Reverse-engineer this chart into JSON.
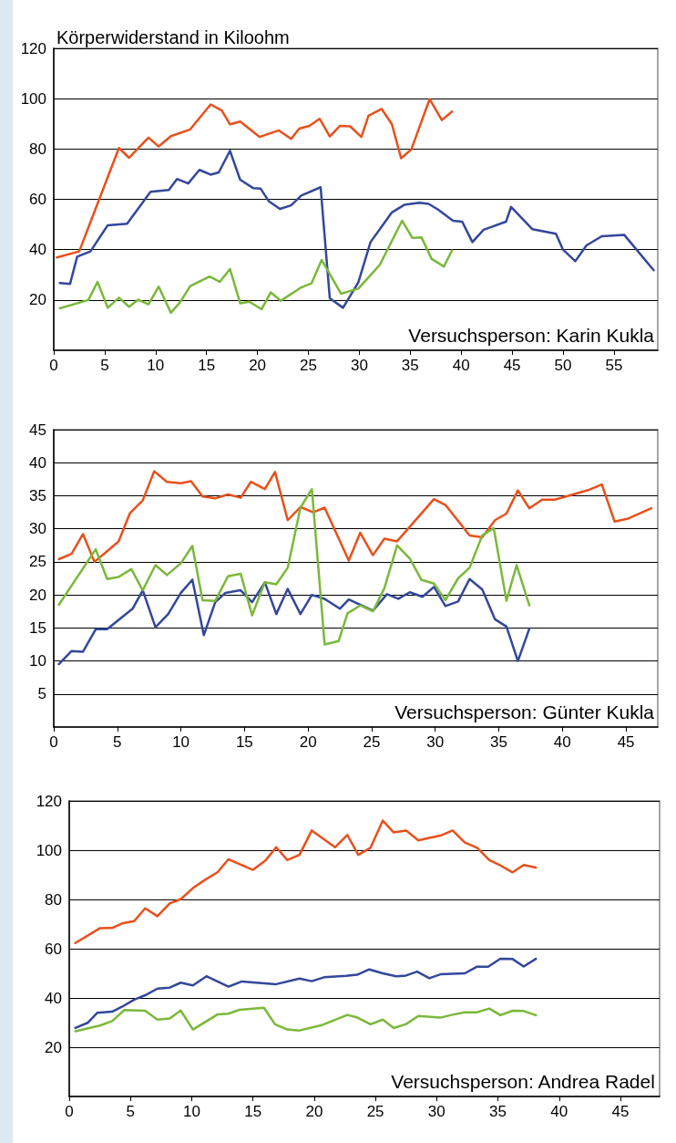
{
  "chart_data": [
    {
      "type": "line",
      "title": "Körperwiderstand in Kiloohm",
      "annotations": [
        "Versuchsperson: Karin Kukla"
      ],
      "xlim": [
        0,
        59.3
      ],
      "xticks": [
        0,
        5,
        10,
        15,
        20,
        25,
        30,
        35,
        40,
        45,
        50,
        55
      ],
      "ylim": [
        0,
        120
      ],
      "yticks": [
        20,
        40,
        60,
        80,
        100,
        120
      ],
      "grid": "y",
      "marker": "none",
      "line_style": "solid",
      "series": [
        {
          "color": "#e8501c",
          "x": [
            0.3,
            2.5,
            6.4,
            7.4,
            9.3,
            10.3,
            11.5,
            13.4,
            15.4,
            16.5,
            17.3,
            18.3,
            20.2,
            22.1,
            23.3,
            24.1,
            25.1,
            26.1,
            27.1,
            28.1,
            29.1,
            30.2,
            30.9,
            32.2,
            33.2,
            34.1,
            35.1,
            36.9,
            38.1,
            39.1
          ],
          "values": [
            36.9,
            39.3,
            80.4,
            76.5,
            84.5,
            81,
            85.1,
            87.8,
            97.7,
            95.3,
            89.8,
            90.9,
            84.8,
            87.4,
            84,
            88.1,
            89.2,
            92,
            85,
            89.2,
            89,
            84.8,
            93.2,
            95.9,
            89.8,
            76.3,
            79.8,
            99.8,
            91.5,
            94.9
          ]
        },
        {
          "color": "#33479b",
          "x": [
            0.6,
            1.6,
            2.3,
            3.6,
            5.3,
            7.2,
            9.5,
            11.3,
            12.1,
            13.2,
            14.3,
            15.4,
            16.2,
            17.3,
            18.3,
            19.6,
            20.3,
            21.1,
            22.2,
            23.3,
            24.3,
            26.2,
            27.1,
            28.4,
            29.9,
            31.1,
            33.2,
            34.4,
            35.9,
            36.8,
            37.7,
            39.2,
            40.1,
            41.1,
            42.2,
            44.4,
            44.9,
            47.0,
            49.3,
            50.0,
            51.2,
            52.3,
            53.8,
            56.0,
            58.9
          ],
          "values": [
            26.7,
            26.4,
            37.2,
            39.3,
            49.7,
            50.3,
            63,
            63.7,
            68.1,
            66.3,
            71.7,
            69.8,
            70.7,
            79.3,
            67.8,
            64.4,
            64.3,
            59.3,
            56.2,
            57.6,
            61.5,
            64.8,
            20.7,
            16.9,
            27,
            43,
            54.8,
            57.8,
            58.6,
            58.2,
            56,
            51.5,
            51.1,
            43,
            47.9,
            51.1,
            57,
            48.1,
            46.3,
            40,
            35.4,
            41.7,
            45.3,
            45.9,
            31.8
          ]
        },
        {
          "color": "#7ab83a",
          "x": [
            0.6,
            3.4,
            4.3,
            5.3,
            6.4,
            7.4,
            8.3,
            9.3,
            10.3,
            11.5,
            12.4,
            13.4,
            15.3,
            16.3,
            17.3,
            18.3,
            19.2,
            20.4,
            21.3,
            22.3,
            24.3,
            25.3,
            26.3,
            28.2,
            29.9,
            31.0,
            32.0,
            34.2,
            35.2,
            36.1,
            37.1,
            38.3,
            39.1
          ],
          "values": [
            16.7,
            20,
            27.2,
            16.9,
            20.9,
            17.3,
            20.1,
            18.3,
            25.3,
            14.9,
            19.1,
            25.5,
            29.3,
            27.2,
            32.3,
            18.7,
            19.3,
            16.3,
            23,
            19.7,
            25,
            26.6,
            35.9,
            22.5,
            24.5,
            29.4,
            33.9,
            51.5,
            44.7,
            44.9,
            36.3,
            33.3,
            39.7
          ]
        }
      ]
    },
    {
      "type": "line",
      "annotations": [
        "Versuchsperson: Günter Kukla"
      ],
      "xlim": [
        0,
        47.5
      ],
      "xticks": [
        0,
        5,
        10,
        15,
        20,
        25,
        30,
        35,
        40,
        45
      ],
      "ylim": [
        0,
        45
      ],
      "yticks": [
        5,
        10,
        15,
        20,
        25,
        30,
        35,
        40,
        45
      ],
      "grid": "y",
      "marker": "none",
      "line_style": "solid",
      "series": [
        {
          "color": "#e8501c",
          "x": [
            0.4,
            1.4,
            2.3,
            3.2,
            4.2,
            5.1,
            6.0,
            7.0,
            7.9,
            8.9,
            10.0,
            10.8,
            11.7,
            12.7,
            13.7,
            14.7,
            15.5,
            16.6,
            17.4,
            18.4,
            19.4,
            20.4,
            21.3,
            23.2,
            24.1,
            25.1,
            26.0,
            27.0,
            29.9,
            30.8,
            32.7,
            33.7,
            34.7,
            35.6,
            36.5,
            37.4,
            38.4,
            39.4,
            42.1,
            43.1,
            44.1,
            45.1,
            47.0
          ],
          "values": [
            25.4,
            26.2,
            29.2,
            25,
            26.6,
            28.1,
            32.4,
            34.3,
            38.7,
            37.1,
            36.9,
            37.2,
            34.9,
            34.6,
            35.2,
            34.7,
            37.1,
            36,
            38.6,
            31.3,
            33.3,
            32.5,
            33.2,
            25.2,
            29.4,
            26,
            28.5,
            28.1,
            34.5,
            33.6,
            29,
            28.7,
            31.3,
            32.3,
            35.8,
            33.1,
            34.4,
            34.4,
            35.9,
            36.7,
            31.1,
            31.5,
            33.1
          ]
        },
        {
          "color": "#33479b",
          "x": [
            0.4,
            1.4,
            2.3,
            3.3,
            4.2,
            6.2,
            7.0,
            8.0,
            9.0,
            10.0,
            10.9,
            11.8,
            12.7,
            13.5,
            14.7,
            15.6,
            16.6,
            17.5,
            18.4,
            19.4,
            20.3,
            21.3,
            22.5,
            23.2,
            25.1,
            26.2,
            27.1,
            28.0,
            29.0,
            29.9,
            30.8,
            31.8,
            32.7,
            33.7,
            34.7,
            35.6,
            36.5,
            37.4
          ],
          "values": [
            9.5,
            11.5,
            11.4,
            14.8,
            14.8,
            17.9,
            20.7,
            15.1,
            17.1,
            20.3,
            22.3,
            13.9,
            18.9,
            20.3,
            20.7,
            18.9,
            21.9,
            17.1,
            20.9,
            17.1,
            20,
            19.4,
            17.9,
            19.3,
            17.6,
            20.1,
            19.4,
            20.4,
            19.7,
            21.2,
            18.3,
            19,
            22.4,
            20.8,
            16.3,
            15.2,
            10,
            14.9
          ]
        },
        {
          "color": "#7ab83a",
          "x": [
            0.4,
            3.3,
            4.2,
            5.1,
            6.1,
            7.0,
            8.0,
            8.9,
            10.0,
            10.9,
            11.7,
            12.7,
            13.7,
            14.7,
            15.6,
            16.6,
            17.5,
            18.4,
            19.4,
            20.3,
            21.3,
            22.4,
            23.1,
            24.1,
            25.1,
            26.0,
            27.0,
            28.0,
            28.9,
            29.9,
            30.8,
            31.8,
            32.7,
            33.7,
            34.6,
            35.6,
            36.4,
            37.4
          ],
          "values": [
            18.5,
            26.9,
            22.4,
            22.7,
            23.9,
            20.7,
            24.5,
            23,
            24.8,
            27.4,
            19.2,
            19.1,
            22.8,
            23.2,
            16.9,
            21.9,
            21.6,
            24.1,
            33.2,
            36,
            12.5,
            13,
            17.2,
            18.4,
            17.5,
            21,
            27.5,
            25.5,
            22.3,
            21.7,
            19.2,
            22.5,
            24.1,
            29,
            30.1,
            19.1,
            24.5,
            18.4
          ]
        }
      ]
    },
    {
      "type": "line",
      "annotations": [
        "Versuchsperson: Andrea Radel"
      ],
      "xlim": [
        0,
        48.2
      ],
      "xticks": [
        0,
        5,
        10,
        15,
        20,
        25,
        30,
        35,
        40,
        45
      ],
      "ylim": [
        0,
        120
      ],
      "yticks": [
        20,
        40,
        60,
        80,
        100,
        120
      ],
      "grid": "y",
      "marker": "none",
      "line_style": "solid",
      "series": [
        {
          "color": "#e8501c",
          "x": [
            0.5,
            2.5,
            3.5,
            4.4,
            5.3,
            6.2,
            7.2,
            8.2,
            9.1,
            10.1,
            11.1,
            12.1,
            13.0,
            15.0,
            16.0,
            16.9,
            17.8,
            18.8,
            19.8,
            21.7,
            22.7,
            23.6,
            24.6,
            25.6,
            26.5,
            27.5,
            28.5,
            29.4,
            30.3,
            31.3,
            32.3,
            33.3,
            34.3,
            35.2,
            36.2,
            37.1,
            38.1
          ],
          "values": [
            62.3,
            68.3,
            68.4,
            70.4,
            71.2,
            76.4,
            73.2,
            78.4,
            80.1,
            84.6,
            88,
            91,
            96.3,
            92,
            95.7,
            101.2,
            96,
            98.1,
            108,
            101.2,
            106.2,
            98.1,
            101,
            112,
            107.2,
            108,
            104,
            105,
            105.9,
            108,
            103.1,
            101,
            96,
            93.8,
            91,
            94,
            93
          ]
        },
        {
          "color": "#33479b",
          "x": [
            0.5,
            1.5,
            2.3,
            3.5,
            4.3,
            5.3,
            6.2,
            7.2,
            8.2,
            9.1,
            10.1,
            11.2,
            13.0,
            14.1,
            16.9,
            18.8,
            19.8,
            20.8,
            22.6,
            23.5,
            24.5,
            25.6,
            26.7,
            27.5,
            28.4,
            29.4,
            30.3,
            32.3,
            33.3,
            34.2,
            35.2,
            36.2,
            37.1,
            38.1
          ],
          "values": [
            27.8,
            29.9,
            34,
            34.4,
            36.4,
            39.3,
            41.1,
            43.8,
            44.2,
            46.2,
            45.1,
            48.8,
            44.6,
            46.7,
            45.6,
            47.9,
            46.8,
            48.4,
            49,
            49.4,
            51.6,
            50,
            48.8,
            49.1,
            50.7,
            48,
            49.6,
            50,
            52.7,
            52.7,
            55.9,
            55.8,
            52.8,
            55.9
          ]
        },
        {
          "color": "#7ab83a",
          "x": [
            0.5,
            2.5,
            3.5,
            4.5,
            6.2,
            7.2,
            8.2,
            9.1,
            10.1,
            12.1,
            13.0,
            13.9,
            15.9,
            16.8,
            17.8,
            18.8,
            20.7,
            22.7,
            23.5,
            24.6,
            25.6,
            26.5,
            27.5,
            28.5,
            30.3,
            31.2,
            32.3,
            33.3,
            34.3,
            35.2,
            36.2,
            37.1,
            38.1
          ],
          "values": [
            26.5,
            28.8,
            30.6,
            35.1,
            34.8,
            31.2,
            31.7,
            34.9,
            27.2,
            33.3,
            33.6,
            35.2,
            36,
            29.3,
            27.2,
            26.8,
            29.1,
            33.1,
            32.1,
            29.3,
            31.2,
            27.8,
            29.4,
            32.7,
            32,
            33.1,
            34.2,
            34.2,
            35.7,
            33,
            34.8,
            34.7,
            33
          ]
        }
      ]
    }
  ]
}
